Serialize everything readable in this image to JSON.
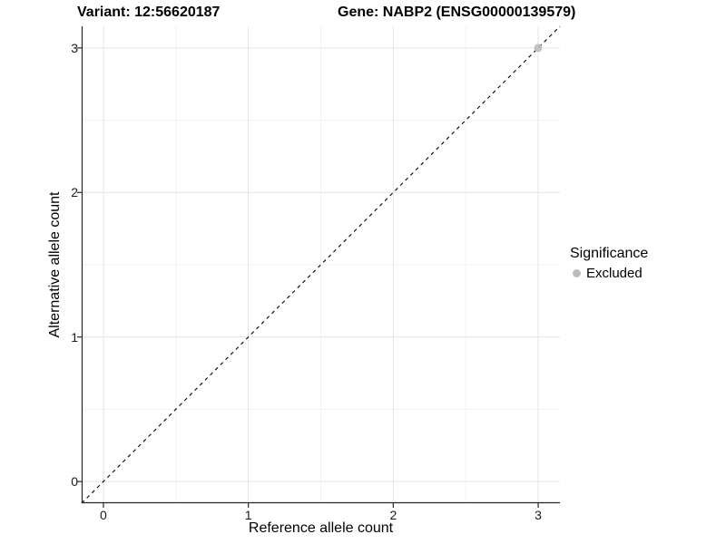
{
  "chart_data": {
    "type": "scatter",
    "titles": {
      "left": "Variant: 12:56620187",
      "right": "Gene: NABP2 (ENSG00000139579)"
    },
    "xlabel": "Reference allele count",
    "ylabel": "Alternative allele count",
    "xlim": [
      -0.15,
      3.15
    ],
    "ylim": [
      -0.15,
      3.15
    ],
    "xticks": [
      0,
      1,
      2,
      3
    ],
    "yticks": [
      0,
      1,
      2,
      3
    ],
    "minor_gridlines": [
      0.5,
      1.5,
      2.5
    ],
    "grid": true,
    "identity_line": {
      "type": "abline",
      "slope": 1,
      "intercept": 0,
      "style": "dashed",
      "color": "#000000"
    },
    "series": [
      {
        "name": "Excluded",
        "color": "#bdbdbd",
        "points": [
          {
            "x": 3,
            "y": 3
          }
        ]
      }
    ],
    "legend": {
      "title": "Significance",
      "position": "right",
      "items": [
        {
          "label": "Excluded",
          "color": "#bdbdbd"
        }
      ]
    },
    "colors": {
      "grid_major": "#e3e3e3",
      "grid_minor": "#f2f2f2",
      "axis": "#262626",
      "point": "#bdbdbd"
    }
  }
}
